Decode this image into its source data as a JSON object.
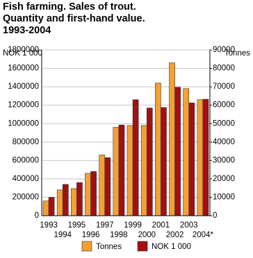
{
  "chart_data": {
    "type": "bar",
    "title": "Fish farming. Sales of trout. Quantity and first-hand value. 1993-2004",
    "y_label": "NOK 1 000",
    "y2_label": "Tonnes",
    "categories": [
      "1993",
      "1994",
      "1995",
      "1996",
      "1997",
      "1998",
      "1999",
      "2000",
      "2001",
      "2002",
      "2003",
      "2004*"
    ],
    "series": [
      {
        "name": "Tonnes",
        "color": "#f5a032",
        "axis": "y2",
        "values": [
          8000,
          14000,
          14700,
          23000,
          33000,
          48000,
          49000,
          49000,
          72000,
          83000,
          69000,
          63000
        ]
      },
      {
        "name": "NOK 1 000",
        "color": "#a50f12",
        "axis": "y",
        "values": [
          200000,
          340000,
          360000,
          480000,
          630000,
          985000,
          1260000,
          1170000,
          1175000,
          1395000,
          1225000,
          1265000
        ]
      }
    ],
    "ylim": [
      0,
      1800000
    ],
    "yticks": [
      0,
      200000,
      400000,
      600000,
      800000,
      1000000,
      1200000,
      1400000,
      1600000,
      1800000
    ],
    "y2lim": [
      0,
      90000
    ],
    "y2ticks": [
      0,
      10000,
      20000,
      30000,
      40000,
      50000,
      60000,
      70000,
      80000,
      90000
    ],
    "grid": true,
    "legend": "bottom"
  }
}
